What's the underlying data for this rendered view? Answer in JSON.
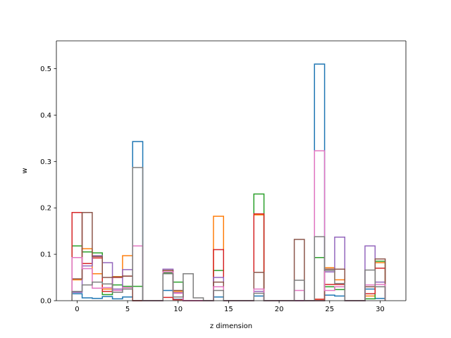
{
  "chart_data": {
    "type": "step-histogram",
    "xlabel": "z dimension",
    "ylabel": "w",
    "xlim": [
      -2.05,
      32.55
    ],
    "ylim": [
      0,
      0.56
    ],
    "xticks": [
      0,
      5,
      10,
      15,
      20,
      25,
      30
    ],
    "yticks": [
      0.0,
      0.1,
      0.2,
      0.3,
      0.4,
      0.5
    ],
    "ytick_labels": [
      "0.0",
      "0.1",
      "0.2",
      "0.3",
      "0.4",
      "0.5"
    ],
    "grid": false,
    "legend": "none",
    "bins": [
      0,
      1,
      2,
      3,
      4,
      5,
      6,
      7,
      8,
      9,
      10,
      11,
      12,
      13,
      14,
      15,
      16,
      17,
      18,
      19,
      20,
      21,
      22,
      23,
      24,
      25,
      26,
      27,
      28,
      29,
      30,
      31
    ],
    "series": [
      {
        "color": "#1f77b4",
        "values": [
          0.015,
          0.006,
          0.005,
          0.009,
          0.004,
          0.008,
          0.343,
          0.0,
          0.0,
          0.022,
          0.003,
          0.0,
          0.0,
          0.0,
          0.008,
          0.0,
          0.0,
          0.0,
          0.01,
          0.0,
          0.0,
          0.0,
          0.0,
          0.0,
          0.51,
          0.012,
          0.01,
          0.0,
          0.0,
          0.025,
          0.005
        ]
      },
      {
        "color": "#ff7f0e",
        "values": [
          0.045,
          0.112,
          0.058,
          0.025,
          0.052,
          0.097,
          0.0,
          0.0,
          0.0,
          0.065,
          0.02,
          0.0,
          0.0,
          0.0,
          0.182,
          0.0,
          0.0,
          0.0,
          0.185,
          0.0,
          0.0,
          0.0,
          0.0,
          0.0,
          0.003,
          0.071,
          0.045,
          0.0,
          0.0,
          0.01,
          0.082
        ]
      },
      {
        "color": "#2ca02c",
        "values": [
          0.118,
          0.105,
          0.103,
          0.013,
          0.034,
          0.031,
          0.031,
          0.0,
          0.0,
          0.06,
          0.04,
          0.0,
          0.0,
          0.0,
          0.065,
          0.0,
          0.0,
          0.0,
          0.23,
          0.0,
          0.0,
          0.0,
          0.0,
          0.0,
          0.093,
          0.03,
          0.024,
          0.0,
          0.0,
          0.004,
          0.085
        ]
      },
      {
        "color": "#d62728",
        "values": [
          0.19,
          0.08,
          0.092,
          0.02,
          0.05,
          0.053,
          0.0,
          0.0,
          0.0,
          0.007,
          0.002,
          0.0,
          0.0,
          0.0,
          0.11,
          0.0,
          0.0,
          0.0,
          0.187,
          0.0,
          0.0,
          0.0,
          0.0,
          0.0,
          0.003,
          0.035,
          0.035,
          0.0,
          0.0,
          0.015,
          0.07
        ]
      },
      {
        "color": "#9467bd",
        "values": [
          0.018,
          0.075,
          0.097,
          0.082,
          0.025,
          0.067,
          0.0,
          0.0,
          0.0,
          0.068,
          0.017,
          0.0,
          0.0,
          0.0,
          0.05,
          0.0,
          0.0,
          0.0,
          0.02,
          0.0,
          0.0,
          0.0,
          0.0,
          0.0,
          0.0,
          0.062,
          0.137,
          0.0,
          0.0,
          0.118,
          0.04
        ]
      },
      {
        "color": "#8c564b",
        "values": [
          0.047,
          0.19,
          0.095,
          0.05,
          0.051,
          0.053,
          0.0,
          0.0,
          0.0,
          0.065,
          0.022,
          0.0,
          0.0,
          0.0,
          0.04,
          0.0,
          0.0,
          0.0,
          0.061,
          0.0,
          0.0,
          0.0,
          0.132,
          0.0,
          0.0,
          0.068,
          0.068,
          0.0,
          0.0,
          0.03,
          0.09
        ]
      },
      {
        "color": "#e377c2",
        "values": [
          0.093,
          0.069,
          0.027,
          0.028,
          0.022,
          0.028,
          0.118,
          0.0,
          0.0,
          0.062,
          0.016,
          0.0,
          0.0,
          0.0,
          0.03,
          0.0,
          0.0,
          0.0,
          0.025,
          0.0,
          0.0,
          0.0,
          0.022,
          0.0,
          0.323,
          0.022,
          0.03,
          0.0,
          0.0,
          0.034,
          0.035
        ]
      },
      {
        "color": "#7f7f7f",
        "values": [
          0.02,
          0.034,
          0.04,
          0.036,
          0.018,
          0.025,
          0.287,
          0.0,
          0.0,
          0.058,
          0.008,
          0.058,
          0.006,
          0.0,
          0.022,
          0.0,
          0.0,
          0.0,
          0.016,
          0.0,
          0.0,
          0.0,
          0.044,
          0.0,
          0.138,
          0.065,
          0.037,
          0.0,
          0.0,
          0.066,
          0.03
        ]
      }
    ]
  }
}
